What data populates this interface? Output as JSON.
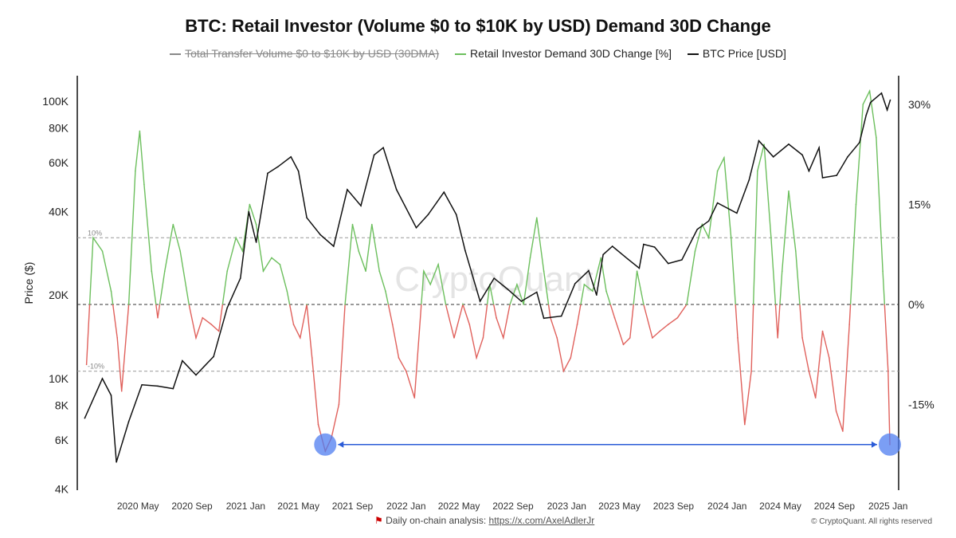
{
  "chart_data": {
    "type": "line",
    "title": "BTC: Retail Investor (Volume $0 to $10K by USD) Demand 30D Change",
    "legend": [
      {
        "name": "Total Transfer Volume  $0 to $10K by USD (30DMA)",
        "color": "#888888",
        "hidden": true
      },
      {
        "name": "Retail Investor Demand 30D Change [%]",
        "color": "#6cbf5d"
      },
      {
        "name": "BTC Price [USD]",
        "color": "#111111"
      }
    ],
    "legend_placement": "top",
    "ylabel": "Price ($)",
    "left_axis": {
      "scale": "log",
      "range": [
        4000,
        110000
      ],
      "ticks": [
        4000,
        6000,
        8000,
        10000,
        20000,
        40000,
        60000,
        80000,
        100000
      ],
      "tick_labels": [
        "4K",
        "6K",
        "8K",
        "10K",
        "20K",
        "40K",
        "60K",
        "80K",
        "100K"
      ]
    },
    "right_axis": {
      "range": [
        -28,
        34
      ],
      "ticks": [
        30,
        15,
        0,
        -15
      ],
      "tick_labels": [
        "30%",
        "15%",
        "0%",
        "-15%"
      ]
    },
    "x_ticks": [
      "2020-05-01",
      "2020-09-01",
      "2021-01-01",
      "2021-05-01",
      "2021-09-01",
      "2022-01-01",
      "2022-05-01",
      "2022-09-01",
      "2023-01-01",
      "2023-05-01",
      "2023-09-01",
      "2024-01-01",
      "2024-05-01",
      "2024-09-01",
      "2025-01-01"
    ],
    "x_tick_labels": [
      "2020 May",
      "2020 Sep",
      "2021 Jan",
      "2021 May",
      "2021 Sep",
      "2022 Jan",
      "2022 May",
      "2022 Sep",
      "2023 Jan",
      "2023 May",
      "2023 Sep",
      "2024 Jan",
      "2024 May",
      "2024 Sep",
      "2025 Jan"
    ],
    "x_range": [
      "2019-12-15",
      "2025-01-25"
    ],
    "reference_lines": [
      {
        "value": 10,
        "label": "10%"
      },
      {
        "value": 0,
        "label": ""
      },
      {
        "value": -10,
        "label": "-10%"
      }
    ],
    "positive_color": "#6cbf5d",
    "negative_color": "#e0615c",
    "btc_price": [
      [
        "2020-01-01",
        7200
      ],
      [
        "2020-02-10",
        10000
      ],
      [
        "2020-03-01",
        8700
      ],
      [
        "2020-03-13",
        5000
      ],
      [
        "2020-04-10",
        7000
      ],
      [
        "2020-05-10",
        9500
      ],
      [
        "2020-06-15",
        9400
      ],
      [
        "2020-07-20",
        9200
      ],
      [
        "2020-08-10",
        11600
      ],
      [
        "2020-09-10",
        10300
      ],
      [
        "2020-10-20",
        12000
      ],
      [
        "2020-11-20",
        18000
      ],
      [
        "2020-12-20",
        23000
      ],
      [
        "2021-01-08",
        40000
      ],
      [
        "2021-01-25",
        31000
      ],
      [
        "2021-02-20",
        55000
      ],
      [
        "2021-03-15",
        58000
      ],
      [
        "2021-04-14",
        63000
      ],
      [
        "2021-05-01",
        56000
      ],
      [
        "2021-05-20",
        38000
      ],
      [
        "2021-06-20",
        33000
      ],
      [
        "2021-07-20",
        30000
      ],
      [
        "2021-08-20",
        48000
      ],
      [
        "2021-09-20",
        42000
      ],
      [
        "2021-10-20",
        64000
      ],
      [
        "2021-11-10",
        68000
      ],
      [
        "2021-12-10",
        48000
      ],
      [
        "2022-01-24",
        35000
      ],
      [
        "2022-02-20",
        39000
      ],
      [
        "2022-03-28",
        47000
      ],
      [
        "2022-04-25",
        39000
      ],
      [
        "2022-05-15",
        29000
      ],
      [
        "2022-06-18",
        19000
      ],
      [
        "2022-07-20",
        23000
      ],
      [
        "2022-08-20",
        21000
      ],
      [
        "2022-09-20",
        19000
      ],
      [
        "2022-10-25",
        20500
      ],
      [
        "2022-11-10",
        16500
      ],
      [
        "2022-12-20",
        16800
      ],
      [
        "2023-01-20",
        22000
      ],
      [
        "2023-02-20",
        24500
      ],
      [
        "2023-03-10",
        20000
      ],
      [
        "2023-03-25",
        28000
      ],
      [
        "2023-04-15",
        30000
      ],
      [
        "2023-05-20",
        27000
      ],
      [
        "2023-06-15",
        25000
      ],
      [
        "2023-06-25",
        30500
      ],
      [
        "2023-07-20",
        29800
      ],
      [
        "2023-08-20",
        26000
      ],
      [
        "2023-09-20",
        26800
      ],
      [
        "2023-10-25",
        34500
      ],
      [
        "2023-11-20",
        37000
      ],
      [
        "2023-12-10",
        43000
      ],
      [
        "2024-01-23",
        39500
      ],
      [
        "2024-02-20",
        52000
      ],
      [
        "2024-03-13",
        72000
      ],
      [
        "2024-04-15",
        63000
      ],
      [
        "2024-05-20",
        70000
      ],
      [
        "2024-06-20",
        64000
      ],
      [
        "2024-07-05",
        56000
      ],
      [
        "2024-07-28",
        68000
      ],
      [
        "2024-08-05",
        53000
      ],
      [
        "2024-09-06",
        54000
      ],
      [
        "2024-10-01",
        63000
      ],
      [
        "2024-10-28",
        71000
      ],
      [
        "2024-11-12",
        89000
      ],
      [
        "2024-11-22",
        99000
      ],
      [
        "2024-12-17",
        107000
      ],
      [
        "2024-12-30",
        93000
      ],
      [
        "2025-01-06",
        101000
      ]
    ],
    "demand_change": [
      [
        "2020-01-05",
        -9
      ],
      [
        "2020-01-20",
        10
      ],
      [
        "2020-02-10",
        8
      ],
      [
        "2020-03-01",
        2
      ],
      [
        "2020-03-15",
        -5
      ],
      [
        "2020-03-25",
        -13
      ],
      [
        "2020-04-10",
        0
      ],
      [
        "2020-04-25",
        20
      ],
      [
        "2020-05-05",
        26
      ],
      [
        "2020-05-15",
        18
      ],
      [
        "2020-06-01",
        5
      ],
      [
        "2020-06-15",
        -2
      ],
      [
        "2020-07-01",
        5
      ],
      [
        "2020-07-20",
        12
      ],
      [
        "2020-08-05",
        8
      ],
      [
        "2020-08-25",
        0
      ],
      [
        "2020-09-10",
        -5
      ],
      [
        "2020-09-25",
        -2
      ],
      [
        "2020-10-15",
        -3
      ],
      [
        "2020-11-01",
        -4
      ],
      [
        "2020-11-20",
        5
      ],
      [
        "2020-12-10",
        10
      ],
      [
        "2020-12-25",
        8
      ],
      [
        "2021-01-10",
        15
      ],
      [
        "2021-01-25",
        12
      ],
      [
        "2021-02-10",
        5
      ],
      [
        "2021-03-01",
        7
      ],
      [
        "2021-03-20",
        6
      ],
      [
        "2021-04-05",
        2
      ],
      [
        "2021-04-20",
        -3
      ],
      [
        "2021-05-05",
        -5
      ],
      [
        "2021-05-20",
        0
      ],
      [
        "2021-06-01",
        -8
      ],
      [
        "2021-06-15",
        -18
      ],
      [
        "2021-07-01",
        -22
      ],
      [
        "2021-07-15",
        -20
      ],
      [
        "2021-08-01",
        -15
      ],
      [
        "2021-08-15",
        0
      ],
      [
        "2021-09-01",
        12
      ],
      [
        "2021-09-15",
        8
      ],
      [
        "2021-10-01",
        5
      ],
      [
        "2021-10-15",
        12
      ],
      [
        "2021-11-01",
        5
      ],
      [
        "2021-11-15",
        2
      ],
      [
        "2021-12-01",
        -3
      ],
      [
        "2021-12-15",
        -8
      ],
      [
        "2022-01-01",
        -10
      ],
      [
        "2022-01-20",
        -14
      ],
      [
        "2022-02-10",
        5
      ],
      [
        "2022-02-25",
        3
      ],
      [
        "2022-03-15",
        6
      ],
      [
        "2022-04-01",
        0
      ],
      [
        "2022-04-20",
        -5
      ],
      [
        "2022-05-10",
        0
      ],
      [
        "2022-05-25",
        -3
      ],
      [
        "2022-06-10",
        -8
      ],
      [
        "2022-06-25",
        -5
      ],
      [
        "2022-07-10",
        3
      ],
      [
        "2022-07-25",
        -2
      ],
      [
        "2022-08-10",
        -5
      ],
      [
        "2022-08-25",
        0
      ],
      [
        "2022-09-10",
        3
      ],
      [
        "2022-09-25",
        0
      ],
      [
        "2022-10-10",
        7
      ],
      [
        "2022-10-25",
        13
      ],
      [
        "2022-11-10",
        5
      ],
      [
        "2022-11-25",
        -2
      ],
      [
        "2022-12-10",
        -5
      ],
      [
        "2022-12-25",
        -10
      ],
      [
        "2023-01-10",
        -8
      ],
      [
        "2023-01-25",
        -3
      ],
      [
        "2023-02-10",
        3
      ],
      [
        "2023-03-01",
        2
      ],
      [
        "2023-03-20",
        7
      ],
      [
        "2023-04-01",
        2
      ],
      [
        "2023-04-20",
        -2
      ],
      [
        "2023-05-10",
        -6
      ],
      [
        "2023-05-25",
        -5
      ],
      [
        "2023-06-10",
        5
      ],
      [
        "2023-06-25",
        0
      ],
      [
        "2023-07-15",
        -5
      ],
      [
        "2023-08-01",
        -4
      ],
      [
        "2023-08-20",
        -3
      ],
      [
        "2023-09-10",
        -2
      ],
      [
        "2023-10-01",
        0
      ],
      [
        "2023-10-20",
        8
      ],
      [
        "2023-11-05",
        12
      ],
      [
        "2023-11-20",
        10
      ],
      [
        "2023-12-10",
        20
      ],
      [
        "2023-12-25",
        22
      ],
      [
        "2024-01-10",
        10
      ],
      [
        "2024-01-25",
        -5
      ],
      [
        "2024-02-10",
        -18
      ],
      [
        "2024-02-25",
        -10
      ],
      [
        "2024-03-10",
        20
      ],
      [
        "2024-03-25",
        24
      ],
      [
        "2024-04-10",
        10
      ],
      [
        "2024-04-25",
        -5
      ],
      [
        "2024-05-05",
        5
      ],
      [
        "2024-05-20",
        17
      ],
      [
        "2024-06-05",
        8
      ],
      [
        "2024-06-20",
        -5
      ],
      [
        "2024-07-05",
        -10
      ],
      [
        "2024-07-20",
        -14
      ],
      [
        "2024-08-05",
        -4
      ],
      [
        "2024-08-20",
        -8
      ],
      [
        "2024-09-05",
        -16
      ],
      [
        "2024-09-20",
        -19
      ],
      [
        "2024-10-05",
        -3
      ],
      [
        "2024-10-20",
        15
      ],
      [
        "2024-11-05",
        30
      ],
      [
        "2024-11-20",
        32
      ],
      [
        "2024-12-05",
        25
      ],
      [
        "2024-12-20",
        5
      ],
      [
        "2025-01-01",
        -10
      ],
      [
        "2025-01-05",
        -21
      ]
    ],
    "annotations": [
      {
        "type": "circle",
        "date": "2021-07-01",
        "value": -21
      },
      {
        "type": "circle",
        "date": "2025-01-05",
        "value": -21
      },
      {
        "type": "double-arrow",
        "from": "2021-07-01",
        "to": "2025-01-05",
        "value": -21,
        "color": "#2a5bd7"
      }
    ],
    "watermark": "CryptoQuant"
  },
  "footer": {
    "text": "Daily on-chain analysis: ",
    "link": "https://x.com/AxelAdlerJr",
    "copyright": "© CryptoQuant. All rights reserved"
  }
}
